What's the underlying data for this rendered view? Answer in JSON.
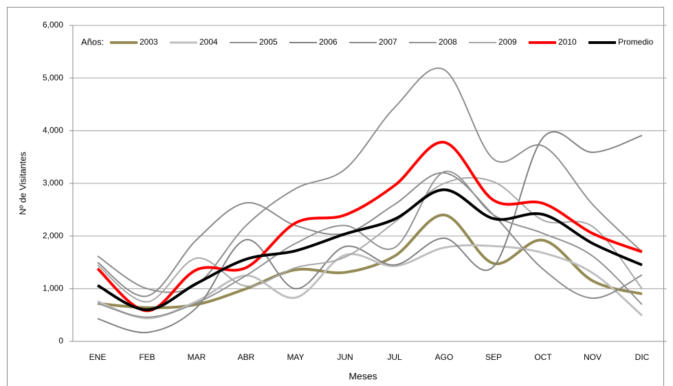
{
  "chart_data": {
    "type": "line",
    "xlabel": "Meses",
    "ylabel": "Nº de Visitantes",
    "legend_title": "Años:",
    "categories": [
      "ENE",
      "FEB",
      "MAR",
      "ABR",
      "MAY",
      "JUN",
      "JUL",
      "AGO",
      "SEP",
      "OCT",
      "NOV",
      "DIC"
    ],
    "ylim": [
      0,
      6000
    ],
    "yticks": [
      0,
      {
        "value": 1000,
        "label": "1,000"
      },
      {
        "value": 2000,
        "label": "2,000"
      },
      {
        "value": 3000,
        "label": "3,000"
      },
      {
        "value": 4000,
        "label": "4,000"
      },
      {
        "value": 5000,
        "label": "5,000"
      },
      {
        "value": 6000,
        "label": "6,000"
      }
    ],
    "grid": true,
    "smooth": true,
    "series": [
      {
        "name": "2003",
        "color": "#948a54",
        "width": 4,
        "values": [
          720,
          640,
          700,
          1000,
          1360,
          1310,
          1620,
          2400,
          1480,
          1920,
          1150,
          900
        ]
      },
      {
        "name": "2004",
        "color": "#bfbfbf",
        "width": 3,
        "values": [
          760,
          440,
          760,
          1250,
          830,
          1640,
          1430,
          1780,
          1810,
          1680,
          1300,
          490
        ]
      },
      {
        "name": "2005",
        "color": "#8c8c8c",
        "width": 2,
        "values": [
          1620,
          1000,
          1080,
          2200,
          2900,
          3270,
          4440,
          5160,
          3460,
          3710,
          2600,
          1700
        ]
      },
      {
        "name": "2006",
        "color": "#7f7f7f",
        "width": 2,
        "values": [
          430,
          170,
          640,
          1930,
          1000,
          1800,
          1450,
          1960,
          1420,
          3870,
          3590,
          3910
        ]
      },
      {
        "name": "2007",
        "color": "#888888",
        "width": 2,
        "values": [
          1500,
          860,
          1930,
          2630,
          2200,
          2050,
          2600,
          3200,
          2400,
          1370,
          820,
          1260
        ]
      },
      {
        "name": "2008",
        "color": "#909090",
        "width": 2,
        "values": [
          720,
          460,
          730,
          1250,
          1860,
          2200,
          1780,
          3220,
          2400,
          2050,
          1620,
          700
        ]
      },
      {
        "name": "2009",
        "color": "#a6a6a6",
        "width": 2,
        "values": [
          1450,
          750,
          1580,
          1050,
          1400,
          1600,
          2260,
          3000,
          3030,
          2300,
          2180,
          1000
        ]
      },
      {
        "name": "2010",
        "color": "#ff0000",
        "width": 4,
        "values": [
          1380,
          580,
          1360,
          1400,
          2250,
          2400,
          2960,
          3780,
          2680,
          2620,
          2050,
          1700
        ]
      },
      {
        "name": "Promedio",
        "color": "#000000",
        "width": 4,
        "values": [
          1060,
          600,
          1100,
          1560,
          1720,
          2040,
          2320,
          2880,
          2330,
          2410,
          1860,
          1450
        ]
      }
    ]
  }
}
